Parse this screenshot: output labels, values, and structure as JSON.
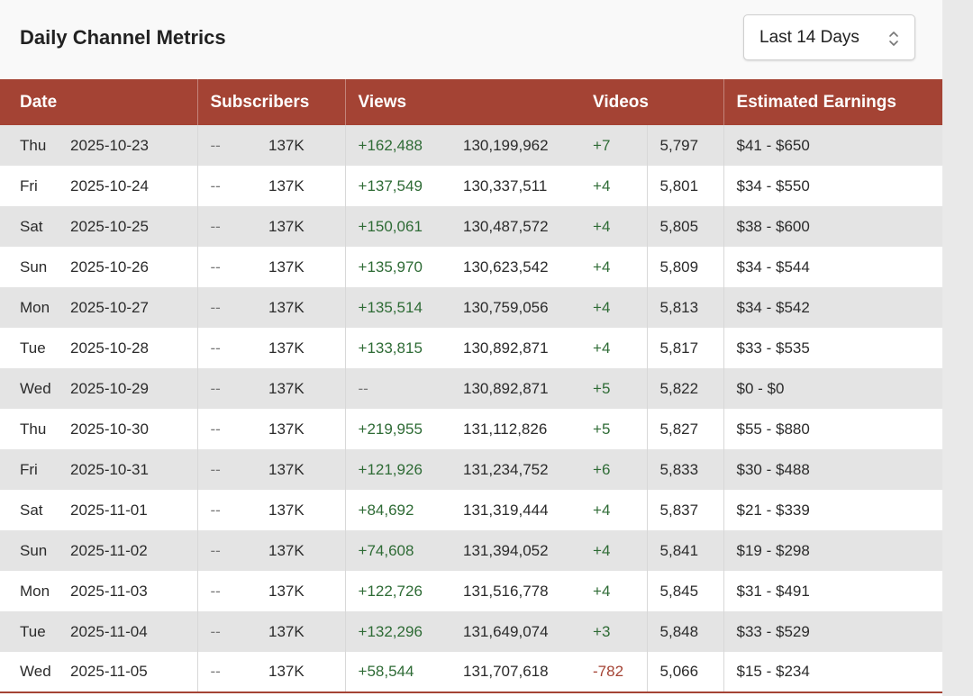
{
  "header": {
    "title": "Daily Channel Metrics",
    "range_selector": {
      "value": "Last 14 Days"
    }
  },
  "table": {
    "columns": [
      "Date",
      "Subscribers",
      "Views",
      "Videos",
      "Estimated Earnings"
    ],
    "rows": [
      {
        "day": "Thu",
        "date": "2025-10-23",
        "subs_change": "--",
        "subs_total": "137K",
        "views_change": "+162,488",
        "views_total": "130,199,962",
        "videos_change": "+7",
        "videos_total": "5,797",
        "earnings": "$41 - $650"
      },
      {
        "day": "Fri",
        "date": "2025-10-24",
        "subs_change": "--",
        "subs_total": "137K",
        "views_change": "+137,549",
        "views_total": "130,337,511",
        "videos_change": "+4",
        "videos_total": "5,801",
        "earnings": "$34 - $550"
      },
      {
        "day": "Sat",
        "date": "2025-10-25",
        "subs_change": "--",
        "subs_total": "137K",
        "views_change": "+150,061",
        "views_total": "130,487,572",
        "videos_change": "+4",
        "videos_total": "5,805",
        "earnings": "$38 - $600"
      },
      {
        "day": "Sun",
        "date": "2025-10-26",
        "subs_change": "--",
        "subs_total": "137K",
        "views_change": "+135,970",
        "views_total": "130,623,542",
        "videos_change": "+4",
        "videos_total": "5,809",
        "earnings": "$34 - $544"
      },
      {
        "day": "Mon",
        "date": "2025-10-27",
        "subs_change": "--",
        "subs_total": "137K",
        "views_change": "+135,514",
        "views_total": "130,759,056",
        "videos_change": "+4",
        "videos_total": "5,813",
        "earnings": "$34 - $542"
      },
      {
        "day": "Tue",
        "date": "2025-10-28",
        "subs_change": "--",
        "subs_total": "137K",
        "views_change": "+133,815",
        "views_total": "130,892,871",
        "videos_change": "+4",
        "videos_total": "5,817",
        "earnings": "$33 - $535"
      },
      {
        "day": "Wed",
        "date": "2025-10-29",
        "subs_change": "--",
        "subs_total": "137K",
        "views_change": "--",
        "views_total": "130,892,871",
        "videos_change": "+5",
        "videos_total": "5,822",
        "earnings": "$0 - $0"
      },
      {
        "day": "Thu",
        "date": "2025-10-30",
        "subs_change": "--",
        "subs_total": "137K",
        "views_change": "+219,955",
        "views_total": "131,112,826",
        "videos_change": "+5",
        "videos_total": "5,827",
        "earnings": "$55 - $880"
      },
      {
        "day": "Fri",
        "date": "2025-10-31",
        "subs_change": "--",
        "subs_total": "137K",
        "views_change": "+121,926",
        "views_total": "131,234,752",
        "videos_change": "+6",
        "videos_total": "5,833",
        "earnings": "$30 - $488"
      },
      {
        "day": "Sat",
        "date": "2025-11-01",
        "subs_change": "--",
        "subs_total": "137K",
        "views_change": "+84,692",
        "views_total": "131,319,444",
        "videos_change": "+4",
        "videos_total": "5,837",
        "earnings": "$21 - $339"
      },
      {
        "day": "Sun",
        "date": "2025-11-02",
        "subs_change": "--",
        "subs_total": "137K",
        "views_change": "+74,608",
        "views_total": "131,394,052",
        "videos_change": "+4",
        "videos_total": "5,841",
        "earnings": "$19 - $298"
      },
      {
        "day": "Mon",
        "date": "2025-11-03",
        "subs_change": "--",
        "subs_total": "137K",
        "views_change": "+122,726",
        "views_total": "131,516,778",
        "videos_change": "+4",
        "videos_total": "5,845",
        "earnings": "$31 - $491"
      },
      {
        "day": "Tue",
        "date": "2025-11-04",
        "subs_change": "--",
        "subs_total": "137K",
        "views_change": "+132,296",
        "views_total": "131,649,074",
        "videos_change": "+3",
        "videos_total": "5,848",
        "earnings": "$33 - $529"
      },
      {
        "day": "Wed",
        "date": "2025-11-05",
        "subs_change": "--",
        "subs_total": "137K",
        "views_change": "+58,544",
        "views_total": "131,707,618",
        "videos_change": "-782",
        "videos_total": "5,066",
        "earnings": "$15 - $234"
      }
    ]
  },
  "colors": {
    "accent": "#a44334",
    "positive": "#2e6b35",
    "negative": "#a44334",
    "row_shaded": "#e4e4e4",
    "row_plain": "#ffffff"
  }
}
